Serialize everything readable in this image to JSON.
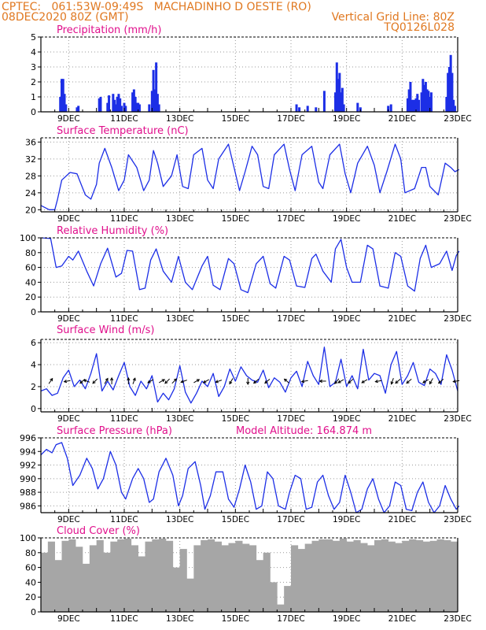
{
  "header": {
    "line1_left": "CPTEC:   061:53W-09:49S   MACHADINHO D OESTE (RO)",
    "line2_left": "08DEC2020 80Z (GMT)",
    "line2_right": "Vertical Grid Line: 80Z",
    "line3_right": "TQ0126L028",
    "color": "#e07820"
  },
  "title_color": "#e0108c",
  "series_color": "#1c2ee6",
  "bar_color": "#1c2ee6",
  "cloud_color": "#a6a6a6",
  "x_ticks": [
    "9DEC",
    "11DEC",
    "13DEC",
    "15DEC",
    "17DEC",
    "19DEC",
    "21DEC",
    "23DEC"
  ],
  "chart_data": [
    {
      "type": "bar",
      "title": "Precipitation (mm/h)",
      "ylim": [
        0,
        5
      ],
      "yticks": [
        "0",
        "1",
        "2",
        "3",
        "4",
        "5"
      ],
      "x_unit": "day of December 2020",
      "x": [
        8.7,
        8.75,
        8.8,
        8.85,
        8.9,
        9.3,
        9.35,
        10.1,
        10.15,
        10.4,
        10.45,
        10.6,
        10.65,
        10.7,
        10.75,
        10.8,
        10.85,
        10.9,
        11.0,
        11.05,
        11.3,
        11.35,
        11.4,
        11.45,
        11.5,
        11.55,
        11.9,
        12.0,
        12.05,
        12.1,
        12.15,
        12.2,
        12.25,
        17.2,
        17.3,
        17.6,
        17.9,
        18.2,
        18.6,
        18.65,
        18.7,
        18.75,
        18.8,
        18.85,
        18.9,
        19.4,
        19.5,
        20.5,
        20.6,
        21.2,
        21.25,
        21.3,
        21.35,
        21.4,
        21.45,
        21.5,
        21.55,
        21.6,
        21.7,
        21.75,
        21.8,
        21.85,
        21.9,
        21.95,
        22.0,
        22.05,
        22.6,
        22.65,
        22.7,
        22.75,
        22.8,
        22.85,
        22.9
      ],
      "values": [
        1.0,
        2.2,
        2.2,
        1.2,
        0.5,
        0.3,
        0.4,
        0.9,
        1.0,
        0.6,
        1.1,
        1.2,
        0.8,
        0.5,
        1.0,
        1.2,
        0.9,
        0.4,
        0.6,
        0.4,
        1.3,
        1.5,
        1.0,
        0.6,
        0.6,
        0.5,
        0.5,
        1.4,
        2.8,
        1.5,
        3.3,
        1.2,
        0.5,
        0.5,
        0.3,
        0.4,
        0.3,
        1.4,
        1.3,
        3.3,
        2.2,
        2.6,
        1.3,
        1.6,
        0.5,
        0.6,
        0.3,
        0.4,
        0.5,
        0.9,
        1.5,
        2.0,
        0.8,
        0.8,
        0.8,
        0.9,
        1.2,
        0.8,
        1.3,
        2.2,
        1.8,
        2.0,
        1.5,
        1.4,
        1.0,
        1.3,
        1.0,
        2.6,
        3.0,
        3.8,
        2.6,
        0.8,
        0.4
      ]
    },
    {
      "type": "line",
      "title": "Surface Temperature (nC)",
      "ylim": [
        19.5,
        37
      ],
      "yticks": [
        "20",
        "24",
        "28",
        "32",
        "36"
      ],
      "x_unit": "day of December 2020",
      "x": [
        8.0,
        8.3,
        8.5,
        8.6,
        8.75,
        9.05,
        9.3,
        9.6,
        9.8,
        10.0,
        10.1,
        10.3,
        10.55,
        10.8,
        11.0,
        11.15,
        11.45,
        11.7,
        11.9,
        12.05,
        12.2,
        12.4,
        12.7,
        12.9,
        13.1,
        13.3,
        13.5,
        13.8,
        14.0,
        14.2,
        14.4,
        14.75,
        14.95,
        15.15,
        15.35,
        15.6,
        15.8,
        16.0,
        16.2,
        16.4,
        16.75,
        16.95,
        17.15,
        17.4,
        17.75,
        18.0,
        18.15,
        18.4,
        18.75,
        18.95,
        19.15,
        19.4,
        19.75,
        20.0,
        20.2,
        20.45,
        20.75,
        20.95,
        21.1,
        21.45,
        21.7,
        21.85,
        22.0,
        22.3,
        22.55,
        22.75,
        22.9,
        23.05
      ],
      "values": [
        21.0,
        20.0,
        20.0,
        22.5,
        27.0,
        28.8,
        28.5,
        23.5,
        22.5,
        26.0,
        31.0,
        34.5,
        30.0,
        24.5,
        27.0,
        33.0,
        30.0,
        24.5,
        27.0,
        34.0,
        31.0,
        25.5,
        28.0,
        33.0,
        25.5,
        25.0,
        33.0,
        34.5,
        27.0,
        25.0,
        32.0,
        35.5,
        30.0,
        24.5,
        29.0,
        35.0,
        33.0,
        25.5,
        25.0,
        33.0,
        35.5,
        29.5,
        24.5,
        33.0,
        35.0,
        26.5,
        25.0,
        33.0,
        35.5,
        28.5,
        24.0,
        31.0,
        35.0,
        30.5,
        24.0,
        29.0,
        35.5,
        32.0,
        24.0,
        25.0,
        30.0,
        30.0,
        25.5,
        23.5,
        31.0,
        30.0,
        29.0,
        29.5
      ]
    },
    {
      "type": "line",
      "title": "Relative Humidity (%)",
      "ylim": [
        0,
        100
      ],
      "yticks": [
        "0",
        "20",
        "40",
        "60",
        "80",
        "100"
      ],
      "x_unit": "day of December 2020",
      "x": [
        8.0,
        8.35,
        8.55,
        8.75,
        9.0,
        9.15,
        9.35,
        9.65,
        9.9,
        10.15,
        10.4,
        10.7,
        10.9,
        11.1,
        11.3,
        11.55,
        11.75,
        11.95,
        12.15,
        12.4,
        12.7,
        12.95,
        13.2,
        13.45,
        13.8,
        14.0,
        14.2,
        14.45,
        14.75,
        14.95,
        15.2,
        15.45,
        15.75,
        16.0,
        16.25,
        16.45,
        16.75,
        16.95,
        17.2,
        17.5,
        17.75,
        17.9,
        18.15,
        18.45,
        18.6,
        18.8,
        19.0,
        19.2,
        19.5,
        19.75,
        19.95,
        20.2,
        20.5,
        20.75,
        20.95,
        21.2,
        21.45,
        21.65,
        21.85,
        22.05,
        22.35,
        22.6,
        22.8,
        22.95,
        23.05
      ],
      "values": [
        100,
        99,
        60,
        62,
        75,
        70,
        82,
        55,
        35,
        65,
        86,
        47,
        52,
        83,
        82,
        30,
        32,
        70,
        85,
        55,
        40,
        75,
        40,
        30,
        62,
        75,
        36,
        30,
        72,
        65,
        30,
        26,
        65,
        75,
        38,
        32,
        75,
        70,
        35,
        33,
        72,
        78,
        55,
        40,
        85,
        98,
        60,
        40,
        40,
        90,
        85,
        35,
        32,
        80,
        75,
        35,
        28,
        72,
        90,
        60,
        65,
        82,
        56,
        76,
        82
      ]
    },
    {
      "type": "line",
      "title": "Surface Wind (m/s)",
      "ylim": [
        -0.3,
        6.3
      ],
      "yticks": [
        "0",
        "2",
        "4",
        "6"
      ],
      "x_unit": "day of December 2020",
      "x": [
        8.0,
        8.2,
        8.4,
        8.6,
        8.8,
        9.0,
        9.2,
        9.4,
        9.6,
        9.8,
        10.0,
        10.2,
        10.4,
        10.6,
        10.8,
        11.0,
        11.2,
        11.4,
        11.6,
        11.8,
        12.0,
        12.2,
        12.4,
        12.6,
        12.8,
        13.0,
        13.2,
        13.4,
        13.6,
        13.8,
        14.0,
        14.2,
        14.4,
        14.6,
        14.8,
        15.0,
        15.2,
        15.4,
        15.6,
        15.8,
        16.0,
        16.2,
        16.4,
        16.6,
        16.8,
        17.0,
        17.2,
        17.4,
        17.6,
        17.8,
        18.0,
        18.2,
        18.4,
        18.6,
        18.8,
        19.0,
        19.2,
        19.4,
        19.6,
        19.8,
        20.0,
        20.2,
        20.4,
        20.6,
        20.8,
        21.0,
        21.2,
        21.4,
        21.6,
        21.8,
        22.0,
        22.2,
        22.4,
        22.6,
        22.8,
        23.0
      ],
      "values": [
        1.6,
        1.8,
        1.2,
        1.4,
        2.8,
        3.5,
        2.0,
        2.6,
        1.8,
        3.2,
        5.0,
        1.6,
        2.5,
        1.7,
        3.0,
        4.2,
        2.0,
        1.2,
        2.5,
        1.8,
        3.0,
        0.6,
        1.4,
        0.8,
        1.8,
        3.9,
        1.5,
        0.5,
        1.4,
        2.5,
        2.0,
        3.2,
        1.1,
        2.0,
        3.6,
        2.5,
        3.8,
        3.0,
        2.6,
        2.4,
        3.5,
        1.9,
        2.8,
        2.4,
        1.5,
        2.8,
        3.4,
        2.0,
        4.3,
        3.0,
        2.2,
        5.6,
        2.0,
        2.4,
        4.5,
        2.0,
        3.0,
        1.8,
        5.4,
        2.6,
        3.2,
        3.0,
        1.4,
        4.0,
        5.2,
        2.2,
        3.0,
        4.2,
        2.4,
        2.1,
        3.6,
        3.2,
        2.2,
        4.9,
        3.5,
        1.6
      ],
      "wind_vectors": [
        {
          "x": 8.35,
          "dir": 305
        },
        {
          "x": 8.95,
          "dir": 170
        },
        {
          "x": 9.5,
          "dir": 140
        },
        {
          "x": 9.65,
          "dir": 200
        },
        {
          "x": 9.95,
          "dir": 135
        },
        {
          "x": 10.35,
          "dir": 300
        },
        {
          "x": 10.55,
          "dir": 270
        },
        {
          "x": 11.15,
          "dir": 270
        },
        {
          "x": 11.35,
          "dir": 290
        },
        {
          "x": 11.95,
          "dir": 150
        },
        {
          "x": 12.35,
          "dir": 330
        },
        {
          "x": 12.55,
          "dir": 135
        },
        {
          "x": 12.8,
          "dir": 315
        },
        {
          "x": 13.15,
          "dir": 160
        },
        {
          "x": 13.6,
          "dir": 330
        },
        {
          "x": 13.95,
          "dir": 150
        },
        {
          "x": 14.4,
          "dir": 160
        },
        {
          "x": 14.85,
          "dir": 120
        },
        {
          "x": 15.45,
          "dir": 90
        },
        {
          "x": 15.75,
          "dir": 140
        },
        {
          "x": 16.15,
          "dir": 140
        },
        {
          "x": 16.85,
          "dir": 220
        },
        {
          "x": 17.5,
          "dir": 170
        },
        {
          "x": 18.15,
          "dir": 180
        },
        {
          "x": 18.65,
          "dir": 130
        },
        {
          "x": 18.8,
          "dir": 150
        },
        {
          "x": 19.15,
          "dir": 140
        },
        {
          "x": 19.65,
          "dir": 150
        },
        {
          "x": 20.15,
          "dir": 170
        },
        {
          "x": 20.65,
          "dir": 110
        },
        {
          "x": 20.85,
          "dir": 140
        },
        {
          "x": 21.25,
          "dir": 140
        },
        {
          "x": 21.85,
          "dir": 150
        },
        {
          "x": 22.05,
          "dir": 120
        },
        {
          "x": 22.4,
          "dir": 140
        },
        {
          "x": 22.95,
          "dir": 170
        }
      ]
    },
    {
      "type": "line",
      "title": "Surface Pressure (hPa)",
      "annotation": "Model Altitude: 164.874 m",
      "ylim": [
        985,
        996
      ],
      "yticks": [
        "986",
        "988",
        "990",
        "992",
        "994",
        "996"
      ],
      "x_unit": "day of December 2020",
      "x": [
        8.0,
        8.2,
        8.4,
        8.55,
        8.75,
        8.95,
        9.15,
        9.4,
        9.65,
        9.85,
        10.05,
        10.25,
        10.5,
        10.7,
        10.9,
        11.05,
        11.3,
        11.5,
        11.7,
        11.9,
        12.05,
        12.25,
        12.5,
        12.75,
        12.95,
        13.1,
        13.3,
        13.55,
        13.75,
        13.9,
        14.1,
        14.3,
        14.55,
        14.75,
        14.95,
        15.15,
        15.35,
        15.55,
        15.75,
        15.95,
        16.15,
        16.35,
        16.55,
        16.8,
        16.95,
        17.15,
        17.35,
        17.55,
        17.75,
        17.95,
        18.15,
        18.35,
        18.55,
        18.75,
        18.95,
        19.15,
        19.35,
        19.55,
        19.75,
        19.95,
        20.15,
        20.35,
        20.55,
        20.75,
        20.95,
        21.15,
        21.35,
        21.55,
        21.75,
        21.95,
        22.15,
        22.35,
        22.55,
        22.75,
        22.95,
        23.05
      ],
      "values": [
        993.5,
        994.3,
        993.8,
        995.0,
        995.3,
        993.0,
        989.0,
        990.5,
        993.0,
        991.5,
        988.5,
        990.0,
        994.0,
        992.0,
        988.0,
        987.0,
        990.0,
        991.5,
        990.0,
        986.5,
        987.0,
        991.0,
        993.0,
        990.5,
        986.0,
        987.5,
        991.5,
        992.5,
        989.0,
        985.5,
        987.5,
        991.0,
        991.0,
        987.0,
        985.8,
        988.5,
        992.0,
        989.5,
        985.5,
        986.0,
        991.0,
        990.0,
        986.0,
        985.5,
        988.0,
        990.5,
        990.0,
        985.5,
        985.8,
        989.5,
        990.5,
        987.5,
        985.5,
        986.5,
        990.5,
        988.0,
        985.0,
        985.5,
        988.5,
        990.0,
        987.0,
        985.0,
        986.0,
        989.5,
        989.0,
        985.5,
        985.3,
        988.0,
        989.5,
        986.5,
        985.0,
        986.0,
        989.0,
        987.0,
        985.5,
        986.0
      ]
    },
    {
      "type": "bar",
      "title": "Cloud Cover (%)",
      "ylim": [
        0,
        100
      ],
      "yticks": [
        "0",
        "20",
        "40",
        "60",
        "80",
        "100"
      ],
      "x_unit": "day of December 2020",
      "x": [
        8.0,
        8.25,
        8.5,
        8.75,
        9.0,
        9.25,
        9.5,
        9.75,
        10.0,
        10.25,
        10.5,
        10.75,
        11.0,
        11.25,
        11.5,
        11.75,
        12.0,
        12.25,
        12.5,
        12.75,
        13.0,
        13.25,
        13.5,
        13.75,
        14.0,
        14.25,
        14.5,
        14.75,
        15.0,
        15.25,
        15.5,
        15.75,
        16.0,
        16.25,
        16.5,
        16.75,
        17.0,
        17.25,
        17.5,
        17.75,
        18.0,
        18.25,
        18.5,
        18.75,
        19.0,
        19.25,
        19.5,
        19.75,
        20.0,
        20.25,
        20.5,
        20.75,
        21.0,
        21.25,
        21.5,
        21.75,
        22.0,
        22.25,
        22.5,
        22.75
      ],
      "values": [
        80,
        95,
        70,
        96,
        98,
        88,
        65,
        90,
        97,
        80,
        95,
        98,
        99,
        90,
        75,
        95,
        98,
        99,
        96,
        60,
        85,
        45,
        90,
        97,
        98,
        95,
        90,
        93,
        96,
        92,
        90,
        70,
        80,
        40,
        10,
        35,
        90,
        85,
        92,
        96,
        98,
        98,
        96,
        99,
        95,
        97,
        93,
        90,
        97,
        98,
        95,
        93,
        96,
        98,
        97,
        95,
        96,
        98,
        97,
        95
      ]
    }
  ]
}
